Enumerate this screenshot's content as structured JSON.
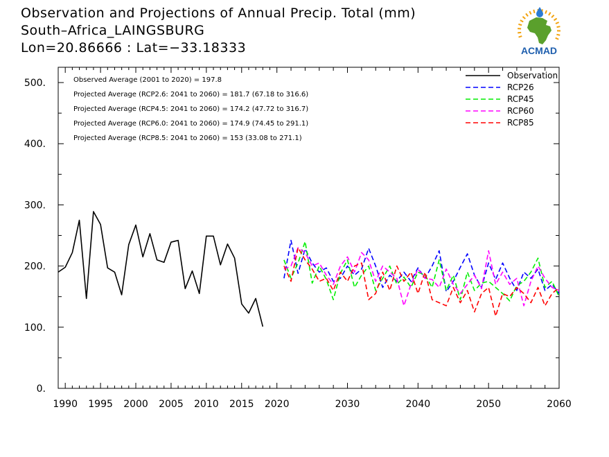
{
  "header": {
    "title": "Observation and Projections of Annual Precip. Total (mm)",
    "subtitle": "South–Africa_LAINGSBURG",
    "coords": "Lon=20.86666 : Lat=−33.18333"
  },
  "logo": {
    "text": "ACMAD",
    "colors": {
      "africa": "#5aa02c",
      "sun": "#f2a20c",
      "text": "#1f5fae",
      "drop": "#2b7bd3"
    }
  },
  "chart_data": {
    "type": "line",
    "xlim": [
      1989,
      2060
    ],
    "ylim": [
      0,
      525
    ],
    "x_ticks": [
      1990,
      1995,
      2000,
      2005,
      2010,
      2015,
      2020,
      2030,
      2040,
      2050,
      2060
    ],
    "x_tick_labels": [
      "1990",
      "1995",
      "2000",
      "2005",
      "2010",
      "2015",
      "2020",
      "2030",
      "2040",
      "2050",
      "2060"
    ],
    "y_ticks": [
      0,
      100,
      200,
      300,
      400,
      500
    ],
    "y_tick_labels": [
      "0.",
      "100.",
      "200.",
      "300.",
      "400.",
      "500."
    ],
    "annotations": [
      "Observed Average (2001 to 2020) = 197.8",
      "Projected Average (RCP2.6: 2041 to 2060) = 181.7 (67.18 to 316.6)",
      "Projected Average (RCP4.5: 2041 to 2060) = 174.2 (47.72 to 316.7)",
      "Projected Average (RCP6.0: 2041 to 2060) = 174.9 (74.45 to 291.1)",
      "Projected Average (RCP8.5: 2041 to 2060) = 153 (33.08 to 271.1)"
    ],
    "legend_position": "top-right",
    "series": [
      {
        "name": "Observation",
        "color": "#000000",
        "dashed": false,
        "x": [
          1989,
          1990,
          1991,
          1992,
          1993,
          1994,
          1995,
          1996,
          1997,
          1998,
          1999,
          2000,
          2001,
          2002,
          2003,
          2004,
          2005,
          2006,
          2007,
          2008,
          2009,
          2010,
          2011,
          2012,
          2013,
          2014,
          2015,
          2016,
          2017,
          2018,
          2019,
          2020
        ],
        "y": [
          190,
          198,
          222,
          275,
          147,
          289,
          268,
          197,
          190,
          153,
          235,
          267,
          215,
          253,
          210,
          206,
          239,
          242,
          163,
          192,
          155,
          249,
          249,
          202,
          236,
          213,
          138,
          123,
          147,
          101,
          null,
          null
        ]
      },
      {
        "name": "RCP26",
        "color": "#0000ff",
        "dashed": true,
        "x": [
          2021,
          2022,
          2023,
          2024,
          2025,
          2026,
          2027,
          2028,
          2029,
          2030,
          2031,
          2032,
          2033,
          2034,
          2035,
          2036,
          2037,
          2038,
          2039,
          2040,
          2041,
          2042,
          2043,
          2044,
          2045,
          2046,
          2047,
          2048,
          2049,
          2050,
          2051,
          2052,
          2053,
          2054,
          2055,
          2056,
          2057,
          2058,
          2059,
          2060
        ],
        "y": [
          180,
          242,
          188,
          228,
          205,
          190,
          197,
          175,
          180,
          200,
          185,
          195,
          229,
          200,
          165,
          185,
          175,
          190,
          175,
          197,
          180,
          200,
          225,
          158,
          175,
          198,
          220,
          185,
          165,
          205,
          178,
          205,
          180,
          160,
          190,
          180,
          195,
          160,
          170,
          155
        ]
      },
      {
        "name": "RCP45",
        "color": "#00ee00",
        "dashed": true,
        "x": [
          2021,
          2022,
          2023,
          2024,
          2025,
          2026,
          2027,
          2028,
          2029,
          2030,
          2031,
          2032,
          2033,
          2034,
          2035,
          2036,
          2037,
          2038,
          2039,
          2040,
          2041,
          2042,
          2043,
          2044,
          2045,
          2046,
          2047,
          2048,
          2049,
          2050,
          2051,
          2052,
          2053,
          2054,
          2055,
          2056,
          2057,
          2058,
          2059,
          2060
        ],
        "y": [
          210,
          180,
          205,
          240,
          172,
          200,
          178,
          145,
          188,
          210,
          165,
          185,
          200,
          160,
          180,
          200,
          170,
          182,
          165,
          190,
          185,
          165,
          210,
          160,
          185,
          145,
          190,
          160,
          172,
          175,
          165,
          155,
          143,
          168,
          175,
          190,
          213,
          165,
          175,
          150
        ]
      },
      {
        "name": "RCP60",
        "color": "#ff00ff",
        "dashed": true,
        "x": [
          2021,
          2022,
          2023,
          2024,
          2025,
          2026,
          2027,
          2028,
          2029,
          2030,
          2031,
          2032,
          2033,
          2034,
          2035,
          2036,
          2037,
          2038,
          2039,
          2040,
          2041,
          2042,
          2043,
          2044,
          2045,
          2046,
          2047,
          2048,
          2049,
          2050,
          2051,
          2052,
          2053,
          2054,
          2055,
          2056,
          2057,
          2058,
          2059,
          2060
        ],
        "y": [
          195,
          200,
          230,
          222,
          200,
          205,
          185,
          170,
          200,
          215,
          190,
          222,
          210,
          175,
          200,
          190,
          180,
          135,
          170,
          195,
          180,
          178,
          165,
          195,
          170,
          155,
          170,
          185,
          163,
          225,
          170,
          190,
          170,
          180,
          135,
          175,
          200,
          180,
          165,
          160
        ]
      },
      {
        "name": "RCP85",
        "color": "#ff0000",
        "dashed": true,
        "x": [
          2021,
          2022,
          2023,
          2024,
          2025,
          2026,
          2027,
          2028,
          2029,
          2030,
          2031,
          2032,
          2033,
          2034,
          2035,
          2036,
          2037,
          2038,
          2039,
          2040,
          2041,
          2042,
          2043,
          2044,
          2045,
          2046,
          2047,
          2048,
          2049,
          2050,
          2051,
          2052,
          2053,
          2054,
          2055,
          2056,
          2057,
          2058,
          2059,
          2060
        ],
        "y": [
          200,
          175,
          230,
          210,
          195,
          175,
          180,
          160,
          190,
          175,
          200,
          205,
          145,
          155,
          190,
          160,
          200,
          175,
          190,
          155,
          190,
          145,
          140,
          135,
          165,
          140,
          160,
          125,
          155,
          165,
          118,
          155,
          150,
          165,
          155,
          140,
          165,
          135,
          155,
          165
        ]
      }
    ]
  }
}
